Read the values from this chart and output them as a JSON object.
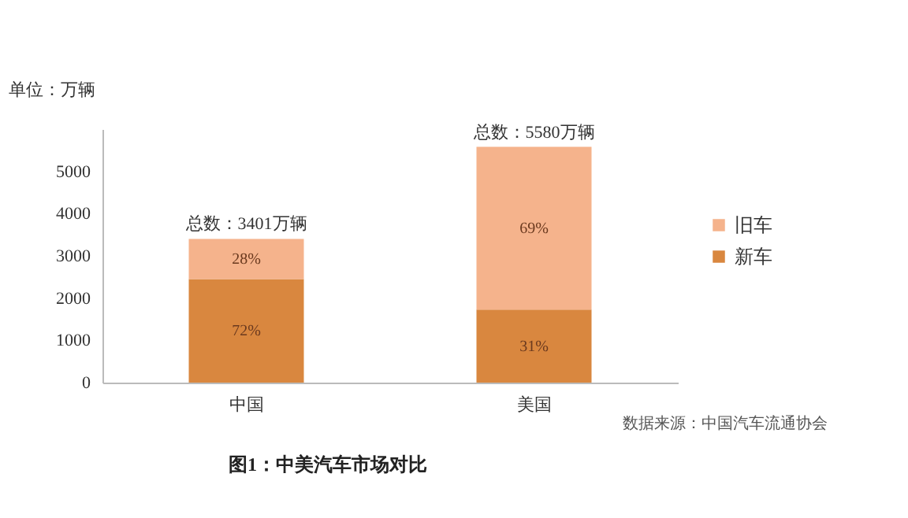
{
  "chart_data": {
    "type": "bar",
    "title": "图1：中美汽车市场对比",
    "ylabel": "单位：万辆",
    "categories": [
      "中国",
      "美国"
    ],
    "stacked": true,
    "series": [
      {
        "name": "新车",
        "color": "#d9873f",
        "values": [
          2449,
          1730
        ]
      },
      {
        "name": "旧车",
        "color": "#f5b38c",
        "values": [
          952,
          3850
        ]
      }
    ],
    "totals": [
      "总数：3401万辆",
      "总数：5580万辆"
    ],
    "ylim": [
      0,
      6000
    ],
    "yticks": [
      0,
      1000,
      2000,
      3000,
      4000,
      5000
    ],
    "grid": false,
    "legend": "right",
    "annotations": [
      "72%",
      "28%",
      "31%",
      "69%",
      "数据来源：中国汽车流通协会"
    ]
  }
}
